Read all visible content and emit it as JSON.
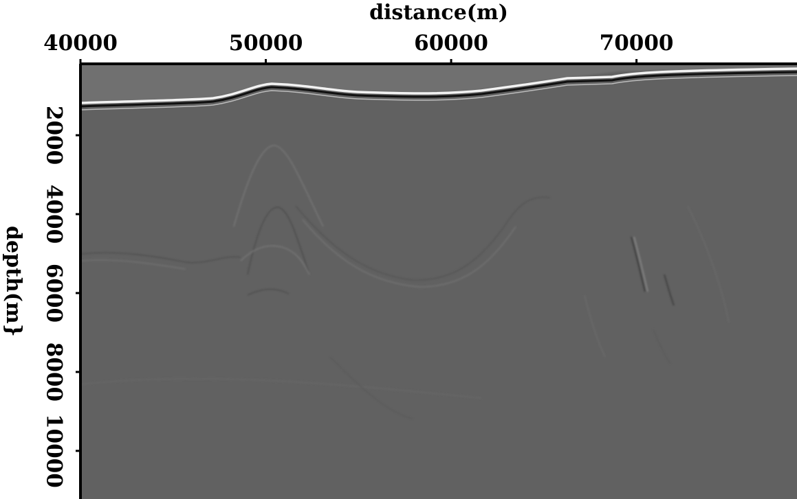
{
  "chart_data": {
    "type": "seismic-image",
    "xlabel": "distance(m)",
    "ylabel": "depth(m}",
    "xlim": [
      40000,
      78660
    ],
    "xticks": [
      40000,
      50000,
      60000,
      70000
    ],
    "ylim": [
      190,
      11220
    ],
    "yticks": [
      2000,
      4000,
      6000,
      8000,
      10000
    ]
  }
}
